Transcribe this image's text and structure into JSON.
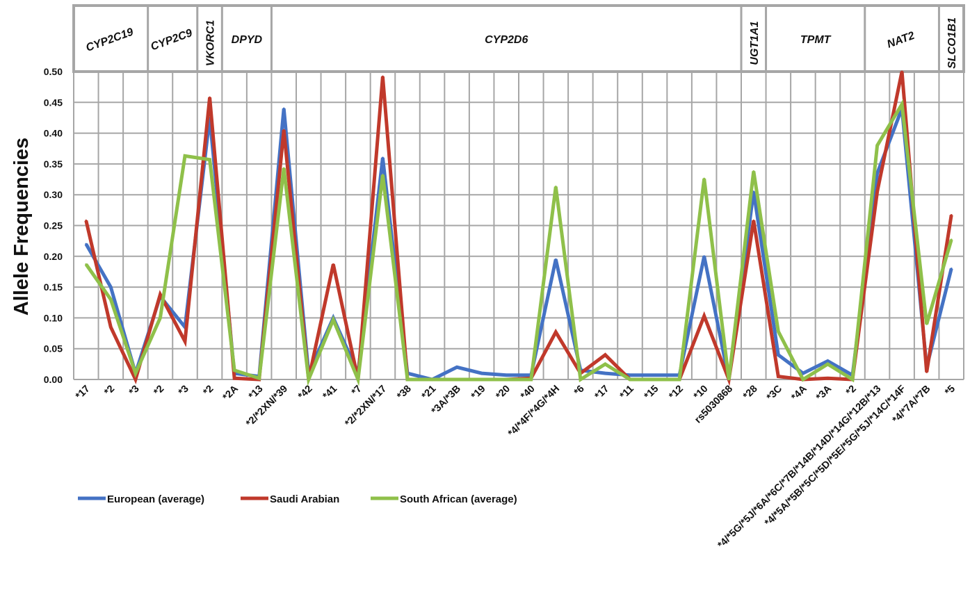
{
  "chart_data": {
    "type": "line",
    "title": "",
    "xlabel": "",
    "ylabel": "Allele Frequencies",
    "ylim": [
      0,
      0.5
    ],
    "yticks": [
      "0.00",
      "0.05",
      "0.10",
      "0.15",
      "0.20",
      "0.25",
      "0.30",
      "0.35",
      "0.40",
      "0.45",
      "0.50"
    ],
    "grid": true,
    "legend_position": "bottom-left",
    "categories": [
      "*17",
      "*2",
      "*3",
      "*2",
      "*3",
      "*2",
      "*2A",
      "*13",
      "*2/*2XN/*39",
      "*42",
      "*41",
      "*7",
      "*2/*2XN/*17",
      "*38",
      "*21",
      "*3A/*3B",
      "*19",
      "*20",
      "*40",
      "*4/*4F/*4G/*4H",
      "*6",
      "*17",
      "*11",
      "*15",
      "*12",
      "*10",
      "rs5030868",
      "*28",
      "*3C",
      "*4A",
      "*3A",
      "*2",
      "*4/*5G/*5J/*6A/*6C/*7B/*14B/*14D/*14G/*12B/*13",
      "*4/*5A/*5B/*5C/*5D/*5E/*5G/*5J/*14C/*14F",
      "*4/*7A/*7B",
      "*5"
    ],
    "genes": [
      {
        "name": "CYP2C19",
        "start": 0,
        "end": 2
      },
      {
        "name": "CYP2C9",
        "start": 3,
        "end": 4
      },
      {
        "name": "VKORC1",
        "start": 5,
        "end": 5
      },
      {
        "name": "DPYD",
        "start": 6,
        "end": 7
      },
      {
        "name": "CYP2D6",
        "start": 8,
        "end": 26
      },
      {
        "name": "UGT1A1",
        "start": 27,
        "end": 27
      },
      {
        "name": "TPMT",
        "start": 28,
        "end": 31
      },
      {
        "name": "NAT2",
        "start": 32,
        "end": 34
      },
      {
        "name": "SLCO1B1",
        "start": 35,
        "end": 35
      }
    ],
    "series": [
      {
        "name": "European (average)",
        "color": "#4472c4",
        "values": [
          0.22,
          0.15,
          0.01,
          0.135,
          0.085,
          0.425,
          0.01,
          0.005,
          0.44,
          0.01,
          0.1,
          0.01,
          0.36,
          0.01,
          0.0,
          0.02,
          0.01,
          0.007,
          0.007,
          0.195,
          0.015,
          0.01,
          0.007,
          0.007,
          0.007,
          0.2,
          0.0,
          0.305,
          0.04,
          0.01,
          0.03,
          0.007,
          0.335,
          0.44,
          0.02,
          0.18
        ]
      },
      {
        "name": "Saudi Arabian",
        "color": "#c0392b",
        "values": [
          0.258,
          0.085,
          0.0,
          0.138,
          0.062,
          0.458,
          0.002,
          0.0,
          0.405,
          0.0,
          0.187,
          0.0,
          0.492,
          0.0,
          0.0,
          0.0,
          0.0,
          0.0,
          0.002,
          0.077,
          0.01,
          0.04,
          0.0,
          0.0,
          0.0,
          0.103,
          0.0,
          0.258,
          0.005,
          0.0,
          0.002,
          0.0,
          0.305,
          0.5,
          0.012,
          0.267
        ]
      },
      {
        "name": "South African (average)",
        "color": "#8fc04a",
        "values": [
          0.187,
          0.13,
          0.01,
          0.1,
          0.363,
          0.357,
          0.015,
          0.002,
          0.343,
          0.0,
          0.097,
          0.0,
          0.332,
          0.0,
          0.0,
          0.0,
          0.0,
          0.0,
          0.0,
          0.313,
          0.0,
          0.025,
          0.0,
          0.0,
          0.0,
          0.326,
          0.0,
          0.338,
          0.078,
          0.0,
          0.025,
          0.0,
          0.38,
          0.447,
          0.09,
          0.227
        ]
      }
    ]
  }
}
